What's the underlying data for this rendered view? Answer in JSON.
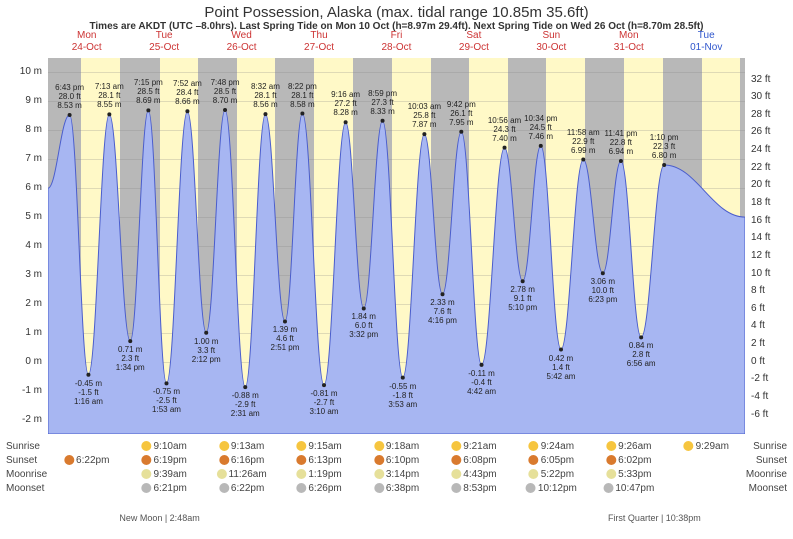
{
  "title": "Point Possession, Alaska (max. tidal range 10.85m 35.6ft)",
  "subtitle": "Times are AKDT (UTC –8.0hrs). Last Spring Tide on Mon 10 Oct (h=8.97m 29.4ft). Next Spring Tide on Wed 26 Oct (h=8.70m 28.5ft)",
  "plot": {
    "ymin_m": -2.5,
    "ymax_m": 10.5,
    "yticks_left_m": [
      -2,
      -1,
      0,
      1,
      2,
      3,
      4,
      5,
      6,
      7,
      8,
      9,
      10
    ],
    "yticks_right_ft": [
      -6,
      -4,
      -2,
      0,
      2,
      4,
      6,
      8,
      10,
      12,
      14,
      16,
      18,
      20,
      22,
      24,
      26,
      28,
      30,
      32
    ],
    "bg_day": "#fff9c7",
    "bg_shade": "#b8b8b8",
    "tide_fill": "#a7b6f2",
    "tide_stroke": "#4a5dcc",
    "grid_color": "rgba(128,128,128,0.25)"
  },
  "days": [
    {
      "dow": "Mon",
      "date": "24-Oct",
      "color": "#cc3333"
    },
    {
      "dow": "Tue",
      "date": "25-Oct",
      "color": "#cc3333"
    },
    {
      "dow": "Wed",
      "date": "26-Oct",
      "color": "#cc3333"
    },
    {
      "dow": "Thu",
      "date": "27-Oct",
      "color": "#cc3333"
    },
    {
      "dow": "Fri",
      "date": "28-Oct",
      "color": "#cc3333"
    },
    {
      "dow": "Sat",
      "date": "29-Oct",
      "color": "#cc3333"
    },
    {
      "dow": "Sun",
      "date": "30-Oct",
      "color": "#cc3333"
    },
    {
      "dow": "Mon",
      "date": "31-Oct",
      "color": "#cc3333"
    },
    {
      "dow": "Tue",
      "date": "01-Nov",
      "color": "#2e55cc"
    }
  ],
  "night_windows": [
    {
      "start": 0.0,
      "end": 0.048
    },
    {
      "start": 0.104,
      "end": 0.16
    },
    {
      "start": 0.215,
      "end": 0.271
    },
    {
      "start": 0.326,
      "end": 0.382
    },
    {
      "start": 0.438,
      "end": 0.493
    },
    {
      "start": 0.549,
      "end": 0.604
    },
    {
      "start": 0.66,
      "end": 0.715
    },
    {
      "start": 0.771,
      "end": 0.826
    },
    {
      "start": 0.883,
      "end": 0.938
    },
    {
      "start": 0.993,
      "end": 1.0
    }
  ],
  "tide_points": [
    {
      "t": 0.0,
      "h": 6.0
    },
    {
      "t": 0.031,
      "h": 8.53
    },
    {
      "t": 0.058,
      "h": -0.45
    },
    {
      "t": 0.088,
      "h": 8.55
    },
    {
      "t": 0.118,
      "h": 0.71
    },
    {
      "t": 0.144,
      "h": 8.69
    },
    {
      "t": 0.17,
      "h": -0.75
    },
    {
      "t": 0.2,
      "h": 8.66
    },
    {
      "t": 0.227,
      "h": 1.0
    },
    {
      "t": 0.254,
      "h": 8.7
    },
    {
      "t": 0.283,
      "h": -0.88
    },
    {
      "t": 0.312,
      "h": 8.56
    },
    {
      "t": 0.34,
      "h": 1.39
    },
    {
      "t": 0.365,
      "h": 8.58
    },
    {
      "t": 0.396,
      "h": -0.81
    },
    {
      "t": 0.427,
      "h": 8.28
    },
    {
      "t": 0.453,
      "h": 1.84
    },
    {
      "t": 0.48,
      "h": 8.33
    },
    {
      "t": 0.509,
      "h": -0.55
    },
    {
      "t": 0.54,
      "h": 7.87
    },
    {
      "t": 0.566,
      "h": 2.33
    },
    {
      "t": 0.593,
      "h": 7.95
    },
    {
      "t": 0.622,
      "h": -0.11
    },
    {
      "t": 0.655,
      "h": 7.4
    },
    {
      "t": 0.681,
      "h": 2.78
    },
    {
      "t": 0.707,
      "h": 7.46
    },
    {
      "t": 0.736,
      "h": 0.42
    },
    {
      "t": 0.768,
      "h": 6.99
    },
    {
      "t": 0.796,
      "h": 3.06
    },
    {
      "t": 0.822,
      "h": 6.94
    },
    {
      "t": 0.851,
      "h": 0.84
    },
    {
      "t": 0.884,
      "h": 6.8
    },
    {
      "t": 1.0,
      "h": 5.0
    }
  ],
  "annotations": [
    {
      "t": 0.031,
      "h": 8.53,
      "pos": "above",
      "lines": [
        "6:43 pm",
        "28.0 ft",
        "8.53 m"
      ]
    },
    {
      "t": 0.058,
      "h": -0.45,
      "pos": "below",
      "lines": [
        "-0.45 m",
        "-1.5 ft",
        "1:16 am"
      ]
    },
    {
      "t": 0.088,
      "h": 8.55,
      "pos": "above",
      "lines": [
        "7:13 am",
        "28.1 ft",
        "8.55 m"
      ]
    },
    {
      "t": 0.118,
      "h": 0.71,
      "pos": "below",
      "lines": [
        "0.71 m",
        "2.3 ft",
        "1:34 pm"
      ]
    },
    {
      "t": 0.144,
      "h": 8.69,
      "pos": "above",
      "lines": [
        "7:15 pm",
        "28.5 ft",
        "8.69 m"
      ]
    },
    {
      "t": 0.17,
      "h": -0.75,
      "pos": "below",
      "lines": [
        "-0.75 m",
        "-2.5 ft",
        "1:53 am"
      ]
    },
    {
      "t": 0.2,
      "h": 8.66,
      "pos": "above",
      "lines": [
        "7:52 am",
        "28.4 ft",
        "8.66 m"
      ]
    },
    {
      "t": 0.227,
      "h": 1.0,
      "pos": "below",
      "lines": [
        "1.00 m",
        "3.3 ft",
        "2:12 pm"
      ]
    },
    {
      "t": 0.254,
      "h": 8.7,
      "pos": "above",
      "lines": [
        "7:48 pm",
        "28.5 ft",
        "8.70 m"
      ]
    },
    {
      "t": 0.283,
      "h": -0.88,
      "pos": "below",
      "lines": [
        "-0.88 m",
        "-2.9 ft",
        "2:31 am"
      ]
    },
    {
      "t": 0.312,
      "h": 8.56,
      "pos": "above",
      "lines": [
        "8:32 am",
        "28.1 ft",
        "8.56 m"
      ]
    },
    {
      "t": 0.34,
      "h": 1.39,
      "pos": "below",
      "lines": [
        "1.39 m",
        "4.6 ft",
        "2:51 pm"
      ]
    },
    {
      "t": 0.365,
      "h": 8.58,
      "pos": "above",
      "lines": [
        "8:22 pm",
        "28.1 ft",
        "8.58 m"
      ]
    },
    {
      "t": 0.396,
      "h": -0.81,
      "pos": "below",
      "lines": [
        "-0.81 m",
        "-2.7 ft",
        "3:10 am"
      ]
    },
    {
      "t": 0.427,
      "h": 8.28,
      "pos": "above",
      "lines": [
        "9:16 am",
        "27.2 ft",
        "8.28 m"
      ]
    },
    {
      "t": 0.453,
      "h": 1.84,
      "pos": "below",
      "lines": [
        "1.84 m",
        "6.0 ft",
        "3:32 pm"
      ]
    },
    {
      "t": 0.48,
      "h": 8.33,
      "pos": "above",
      "lines": [
        "8:59 pm",
        "27.3 ft",
        "8.33 m"
      ]
    },
    {
      "t": 0.509,
      "h": -0.55,
      "pos": "below",
      "lines": [
        "-0.55 m",
        "-1.8 ft",
        "3:53 am"
      ]
    },
    {
      "t": 0.54,
      "h": 7.87,
      "pos": "above",
      "lines": [
        "10:03 am",
        "25.8 ft",
        "7.87 m"
      ]
    },
    {
      "t": 0.566,
      "h": 2.33,
      "pos": "below",
      "lines": [
        "2.33 m",
        "7.6 ft",
        "4:16 pm"
      ]
    },
    {
      "t": 0.593,
      "h": 7.95,
      "pos": "above",
      "lines": [
        "9:42 pm",
        "26.1 ft",
        "7.95 m"
      ]
    },
    {
      "t": 0.622,
      "h": -0.11,
      "pos": "below",
      "lines": [
        "-0.11 m",
        "-0.4 ft",
        "4:42 am"
      ]
    },
    {
      "t": 0.655,
      "h": 7.4,
      "pos": "above",
      "lines": [
        "10:56 am",
        "24.3 ft",
        "7.40 m"
      ]
    },
    {
      "t": 0.681,
      "h": 2.78,
      "pos": "below",
      "lines": [
        "2.78 m",
        "9.1 ft",
        "5:10 pm"
      ]
    },
    {
      "t": 0.707,
      "h": 7.46,
      "pos": "above",
      "lines": [
        "10:34 pm",
        "24.5 ft",
        "7.46 m"
      ]
    },
    {
      "t": 0.736,
      "h": 0.42,
      "pos": "below",
      "lines": [
        "0.42 m",
        "1.4 ft",
        "5:42 am"
      ]
    },
    {
      "t": 0.768,
      "h": 6.99,
      "pos": "above",
      "lines": [
        "11:58 am",
        "22.9 ft",
        "6.99 m"
      ]
    },
    {
      "t": 0.796,
      "h": 3.06,
      "pos": "below",
      "lines": [
        "3.06 m",
        "10.0 ft",
        "6:23 pm"
      ]
    },
    {
      "t": 0.822,
      "h": 6.94,
      "pos": "above",
      "lines": [
        "11:41 pm",
        "22.8 ft",
        "6.94 m"
      ]
    },
    {
      "t": 0.851,
      "h": 0.84,
      "pos": "below",
      "lines": [
        "0.84 m",
        "2.8 ft",
        "6:56 am"
      ]
    },
    {
      "t": 0.884,
      "h": 6.8,
      "pos": "above",
      "lines": [
        "1:10 pm",
        "22.3 ft",
        "6.80 m"
      ]
    }
  ],
  "footer": {
    "rows": [
      {
        "label": "Sunrise",
        "label_r": "Sunrise",
        "icon": "#f6c53f",
        "items": [
          {
            "day": 1,
            "text": "9:10am"
          },
          {
            "day": 2,
            "text": "9:13am"
          },
          {
            "day": 3,
            "text": "9:15am"
          },
          {
            "day": 4,
            "text": "9:18am"
          },
          {
            "day": 5,
            "text": "9:21am"
          },
          {
            "day": 6,
            "text": "9:24am"
          },
          {
            "day": 7,
            "text": "9:26am"
          },
          {
            "day": 8,
            "text": "9:29am"
          }
        ]
      },
      {
        "label": "Sunset",
        "label_r": "Sunset",
        "icon": "#d97a2e",
        "items": [
          {
            "day": 0,
            "text": "6:22pm"
          },
          {
            "day": 1,
            "text": "6:19pm"
          },
          {
            "day": 2,
            "text": "6:16pm"
          },
          {
            "day": 3,
            "text": "6:13pm"
          },
          {
            "day": 4,
            "text": "6:10pm"
          },
          {
            "day": 5,
            "text": "6:08pm"
          },
          {
            "day": 6,
            "text": "6:05pm"
          },
          {
            "day": 7,
            "text": "6:02pm"
          }
        ]
      },
      {
        "label": "Moonrise",
        "label_r": "Moonrise",
        "icon": "#e6e09a",
        "items": [
          {
            "day": 1,
            "text": "9:39am"
          },
          {
            "day": 2,
            "text": "11:26am"
          },
          {
            "day": 3,
            "text": "1:19pm"
          },
          {
            "day": 4,
            "text": "3:14pm"
          },
          {
            "day": 5,
            "text": "4:43pm"
          },
          {
            "day": 6,
            "text": "5:22pm"
          },
          {
            "day": 7,
            "text": "5:33pm"
          }
        ]
      },
      {
        "label": "Moonset",
        "label_r": "Moonset",
        "icon": "#b8b8b8",
        "items": [
          {
            "day": 1,
            "text": "6:21pm"
          },
          {
            "day": 2,
            "text": "6:22pm"
          },
          {
            "day": 3,
            "text": "6:26pm"
          },
          {
            "day": 4,
            "text": "6:38pm"
          },
          {
            "day": 5,
            "text": "8:53pm"
          },
          {
            "day": 6,
            "text": "10:12pm"
          },
          {
            "day": 7,
            "text": "10:47pm"
          }
        ]
      }
    ],
    "moon_phases": [
      {
        "text": "New Moon | 2:48am",
        "x": 0.16
      },
      {
        "text": "First Quarter | 10:38pm",
        "x": 0.87
      }
    ]
  }
}
